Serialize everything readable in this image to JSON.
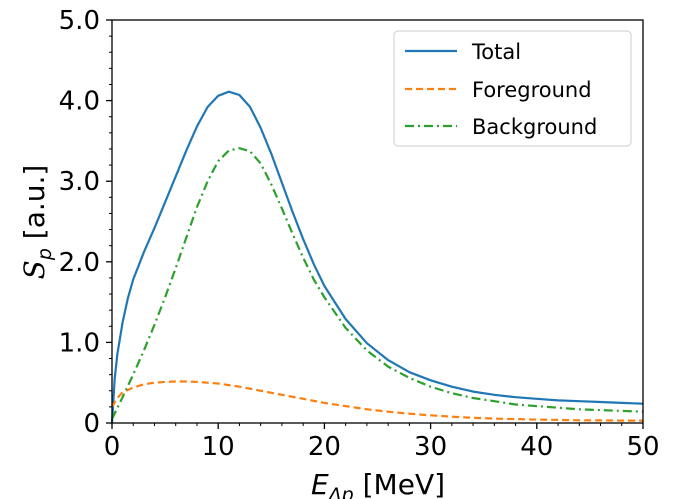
{
  "chart_data": {
    "type": "line",
    "xlabel": {
      "main": "E",
      "sub": "Λp",
      "unit": " [MeV]"
    },
    "ylabel": {
      "main": "S",
      "sub": "p",
      "unit": " [a.u.]"
    },
    "xlim": [
      0,
      50
    ],
    "ylim": [
      0,
      5
    ],
    "xticks": [
      "0",
      "10",
      "20",
      "30",
      "40",
      "50"
    ],
    "xtick_values": [
      0,
      10,
      20,
      30,
      40,
      50
    ],
    "yticks": [
      "0",
      "1.0",
      "2.0",
      "3.0",
      "4.0",
      "5.0"
    ],
    "ytick_values": [
      0,
      1,
      2,
      3,
      4,
      5
    ],
    "grid": false,
    "legend_position": "top-right",
    "series": [
      {
        "name": "Total",
        "color": "#1f77b4",
        "dash": "solid",
        "x": [
          0,
          0.25,
          0.5,
          1,
          1.5,
          2,
          3,
          4,
          5,
          6,
          7,
          8,
          9,
          10,
          11,
          12,
          13,
          14,
          15,
          16,
          17,
          18,
          19,
          20,
          22,
          24,
          26,
          28,
          30,
          32,
          34,
          36,
          38,
          40,
          42,
          44,
          46,
          48,
          50
        ],
        "y": [
          0,
          0.55,
          0.85,
          1.25,
          1.55,
          1.78,
          2.12,
          2.42,
          2.74,
          3.06,
          3.38,
          3.68,
          3.92,
          4.06,
          4.11,
          4.07,
          3.92,
          3.66,
          3.34,
          2.98,
          2.62,
          2.28,
          1.97,
          1.7,
          1.29,
          0.99,
          0.78,
          0.63,
          0.53,
          0.45,
          0.39,
          0.35,
          0.32,
          0.3,
          0.28,
          0.27,
          0.26,
          0.25,
          0.24
        ]
      },
      {
        "name": "Foreground",
        "color": "#ff7f0e",
        "dash": "dashed",
        "x": [
          0,
          0.5,
          1,
          2,
          3,
          4,
          5,
          6,
          7,
          8,
          9,
          10,
          12,
          14,
          16,
          18,
          20,
          22,
          24,
          26,
          28,
          30,
          32,
          34,
          36,
          38,
          40,
          42,
          44,
          46,
          48,
          50
        ],
        "y": [
          0.2,
          0.31,
          0.38,
          0.44,
          0.48,
          0.5,
          0.51,
          0.515,
          0.515,
          0.51,
          0.5,
          0.49,
          0.45,
          0.4,
          0.35,
          0.3,
          0.25,
          0.21,
          0.17,
          0.14,
          0.115,
          0.095,
          0.078,
          0.065,
          0.055,
          0.048,
          0.042,
          0.038,
          0.034,
          0.032,
          0.03,
          0.03
        ]
      },
      {
        "name": "Background",
        "color": "#2ca02c",
        "dash": "dashdot",
        "x": [
          0,
          1,
          2,
          3,
          4,
          5,
          6,
          7,
          8,
          9,
          10,
          11,
          12,
          13,
          14,
          15,
          16,
          17,
          18,
          19,
          20,
          22,
          24,
          26,
          28,
          30,
          32,
          34,
          36,
          38,
          40,
          42,
          44,
          46,
          48,
          50
        ],
        "y": [
          0.05,
          0.32,
          0.6,
          0.9,
          1.22,
          1.56,
          1.92,
          2.3,
          2.68,
          3.0,
          3.25,
          3.38,
          3.41,
          3.37,
          3.22,
          2.96,
          2.66,
          2.35,
          2.05,
          1.78,
          1.56,
          1.18,
          0.9,
          0.7,
          0.56,
          0.45,
          0.37,
          0.31,
          0.27,
          0.23,
          0.21,
          0.19,
          0.17,
          0.16,
          0.15,
          0.14
        ]
      }
    ]
  }
}
